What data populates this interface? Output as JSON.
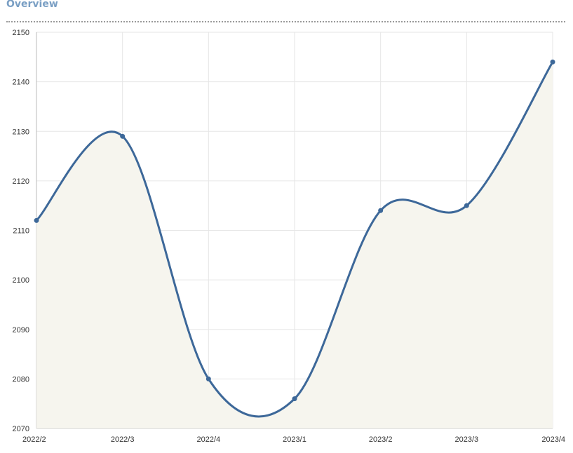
{
  "header": {
    "title": "Overview"
  },
  "colors": {
    "line": "#3d6899",
    "area": "#f6f5ee",
    "grid": "#e6e6e6",
    "axis": "#bbbbbb",
    "title": "#7a9fc4"
  },
  "chart_data": {
    "type": "area",
    "title": "",
    "xlabel": "",
    "ylabel": "",
    "categories": [
      "2022/2",
      "2022/3",
      "2022/4",
      "2023/1",
      "2023/2",
      "2023/3",
      "2023/4"
    ],
    "series": [
      {
        "values": [
          2112,
          2129,
          2080,
          2076,
          2114,
          2115,
          2144
        ]
      }
    ],
    "ylim": [
      2070,
      2150
    ],
    "yticks": [
      2070,
      2080,
      2090,
      2100,
      2110,
      2120,
      2130,
      2140,
      2150
    ],
    "grid": true,
    "smooth": true,
    "legend": "none"
  }
}
